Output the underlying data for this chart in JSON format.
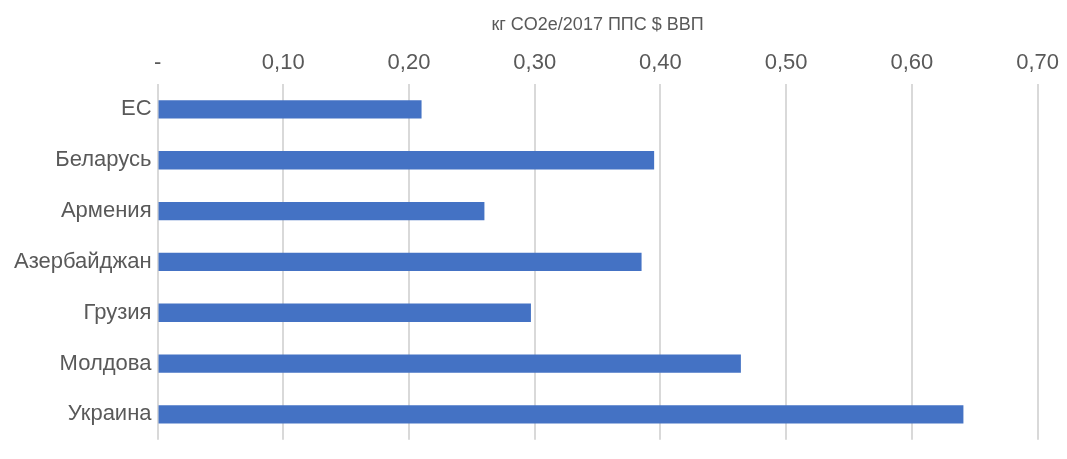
{
  "chart_data": {
    "type": "bar",
    "orientation": "horizontal",
    "xlabel": "кг CO2e/2017 ППС $ ВВП",
    "categories": [
      "ЕС",
      "Беларусь",
      "Армения",
      "Азербайджан",
      "Грузия",
      "Молдова",
      "Украина"
    ],
    "values": [
      0.21,
      0.395,
      0.26,
      0.385,
      0.297,
      0.464,
      0.641
    ],
    "color": "#4472c4",
    "xlim": [
      0,
      0.7
    ],
    "xticks": [
      {
        "value": 0,
        "label": "-"
      },
      {
        "value": 0.1,
        "label": "0,10"
      },
      {
        "value": 0.2,
        "label": "0,20"
      },
      {
        "value": 0.3,
        "label": "0,30"
      },
      {
        "value": 0.4,
        "label": "0,40"
      },
      {
        "value": 0.5,
        "label": "0,50"
      },
      {
        "value": 0.6,
        "label": "0,60"
      },
      {
        "value": 0.7,
        "label": "0,70"
      }
    ],
    "grid": "x",
    "legend": false
  }
}
